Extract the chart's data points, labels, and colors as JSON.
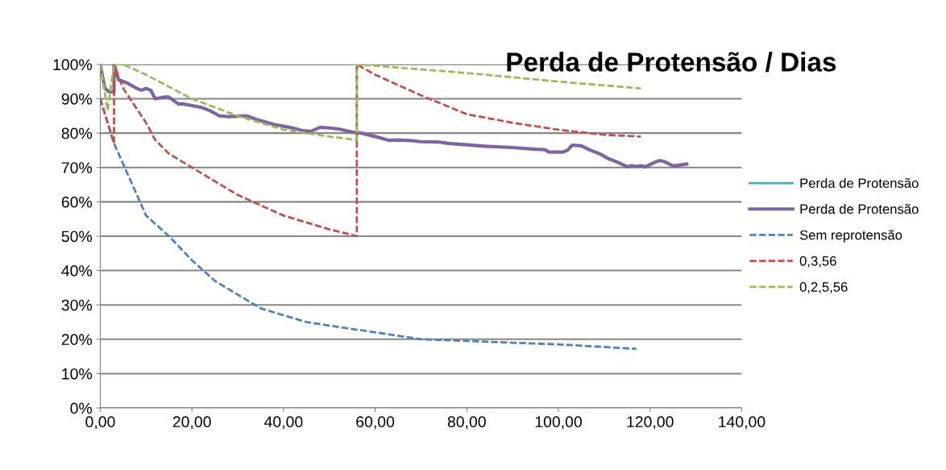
{
  "chart_data": {
    "type": "line",
    "title": "Perda de Protensão / Dias",
    "xlim": [
      0,
      140
    ],
    "xticks": [
      {
        "value": 0,
        "label": "0,00"
      },
      {
        "value": 20,
        "label": "20,00"
      },
      {
        "value": 40,
        "label": "40,00"
      },
      {
        "value": 60,
        "label": "60,00"
      },
      {
        "value": 80,
        "label": "80,00"
      },
      {
        "value": 100,
        "label": "100,00"
      },
      {
        "value": 120,
        "label": "120,00"
      },
      {
        "value": 140,
        "label": "140,00"
      }
    ],
    "ylim": [
      0,
      100
    ],
    "yticks": [
      {
        "value": 0,
        "label": "0%"
      },
      {
        "value": 10,
        "label": "10%"
      },
      {
        "value": 20,
        "label": "20%"
      },
      {
        "value": 30,
        "label": "30%"
      },
      {
        "value": 40,
        "label": "40%"
      },
      {
        "value": 50,
        "label": "50%"
      },
      {
        "value": 60,
        "label": "60%"
      },
      {
        "value": 70,
        "label": "70%"
      },
      {
        "value": 80,
        "label": "80%"
      },
      {
        "value": 90,
        "label": "90%"
      },
      {
        "value": 100,
        "label": "100%"
      }
    ],
    "grid": "y",
    "legend": "right",
    "marker": "none",
    "series": [
      {
        "name": "Perda de Protensão",
        "color": "#4bacc6",
        "line_style": "solid"
      },
      {
        "name": "Perda de Protensão",
        "color": "#8064a2",
        "line_style": "solid",
        "x": [
          0,
          1,
          2,
          3,
          3,
          4,
          6,
          8,
          9,
          10,
          11,
          12,
          14,
          15,
          17,
          18,
          20,
          22,
          24,
          26,
          28,
          31,
          32,
          34,
          38,
          40,
          42,
          44,
          46,
          48,
          50,
          52,
          55,
          57,
          60,
          63,
          65,
          68,
          70,
          74,
          76,
          80,
          84,
          90,
          95,
          97,
          98,
          101,
          102,
          103,
          105,
          107,
          109,
          111,
          113,
          115,
          116,
          117,
          118,
          119,
          121,
          122,
          123,
          125,
          126,
          128
        ],
        "values": [
          100,
          93,
          92,
          92,
          100,
          95.5,
          94.5,
          93,
          92.5,
          93,
          92.5,
          90,
          90.5,
          90.5,
          88.5,
          88.5,
          88,
          87.5,
          86.5,
          85,
          84.8,
          85,
          85,
          84,
          82.5,
          82,
          81.5,
          80.8,
          80.5,
          81.7,
          81.5,
          81.2,
          80.3,
          80,
          79,
          77.9,
          78,
          77.8,
          77.5,
          77.4,
          77,
          76.6,
          76.2,
          75.8,
          75.3,
          75.2,
          74.5,
          74.5,
          75,
          76.5,
          76.3,
          75,
          74,
          72.5,
          71.5,
          70.2,
          70.5,
          70.3,
          70.5,
          70.2,
          71.5,
          72,
          71.8,
          70.5,
          70.6,
          71
        ]
      },
      {
        "name": "Sem reprotensão",
        "color": "#4f81bd",
        "line_style": "dashed",
        "x": [
          0,
          3,
          7,
          10,
          15,
          20,
          25,
          30,
          35,
          40,
          45,
          50,
          60,
          70,
          80,
          90,
          100,
          117
        ],
        "values": [
          90,
          77,
          65,
          56,
          50,
          43,
          37,
          33,
          29,
          27,
          25,
          24,
          22,
          20,
          19.5,
          19,
          18.5,
          17.2
        ]
      },
      {
        "name": "0,3,56",
        "color": "#c0504d",
        "line_style": "dashed",
        "x": [
          0,
          3,
          3,
          5,
          10,
          12,
          15,
          20,
          25,
          30,
          35,
          40,
          45,
          50,
          56,
          56,
          60,
          70,
          80,
          90,
          100,
          110,
          118
        ],
        "values": [
          90,
          77,
          100,
          93,
          83,
          78,
          74,
          70,
          66,
          62,
          59,
          56,
          54,
          52,
          50,
          100,
          97,
          91,
          85.5,
          83,
          81,
          79.5,
          79
        ]
      },
      {
        "name": "0,2,5,56",
        "color": "#9bbb59",
        "line_style": "dashed",
        "x": [
          0,
          1.6,
          3,
          5,
          10,
          20,
          30,
          40,
          50,
          56,
          56,
          60,
          80,
          100,
          118
        ],
        "values": [
          100,
          86.6,
          100,
          100,
          97,
          90,
          85,
          81,
          79,
          78,
          100,
          99.6,
          97.5,
          95,
          93
        ]
      }
    ]
  }
}
